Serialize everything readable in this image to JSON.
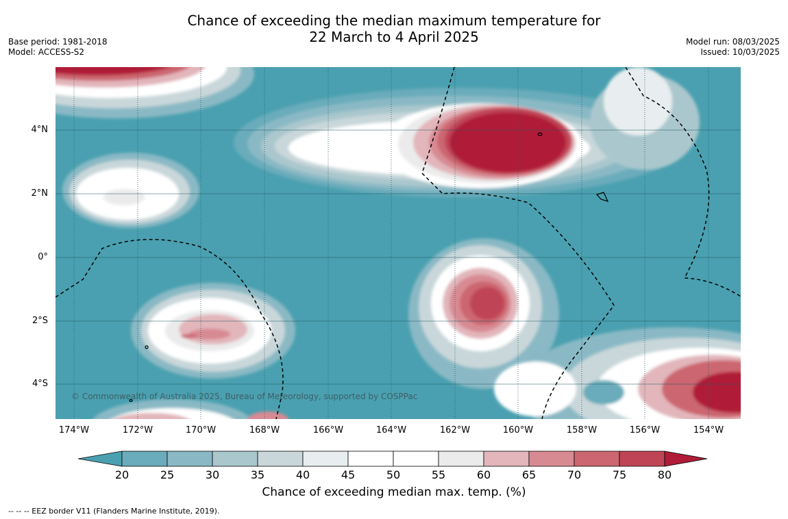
{
  "title_line1": "Chance of exceeding the median maximum temperature for",
  "title_line2": "22 March to 4 April 2025",
  "meta_left": [
    "Base period: 1981-2018",
    "Model: ACCESS-S2"
  ],
  "meta_right": [
    "Model run: 08/03/2025",
    "Issued: 10/03/2025"
  ],
  "lat_labels": [
    "4°N",
    "2°N",
    "0°",
    "2°S",
    "4°S"
  ],
  "lon_labels": [
    "174°W",
    "172°W",
    "170°W",
    "168°W",
    "166°W",
    "164°W",
    "162°W",
    "160°W",
    "158°W",
    "156°W",
    "154°W"
  ],
  "colorbar": {
    "ticks": [
      "20",
      "25",
      "30",
      "35",
      "40",
      "45",
      "50",
      "55",
      "60",
      "65",
      "70",
      "75",
      "80"
    ],
    "colors": [
      "#4aa0b0",
      "#6aacbb",
      "#8ab9c5",
      "#aac7cd",
      "#c9d7da",
      "#e8eeef",
      "#ffffff",
      "#ffffff",
      "#ebebeb",
      "#e2b6bb",
      "#d88a93",
      "#cc6670",
      "#bf4556",
      "#b01c38"
    ],
    "label": "Chance of exceeding median max. temp. (%)"
  },
  "copyright": "© Commonwealth of Australia 2025, Bureau of Meteorology, supported by COSPPac",
  "footnote": "--  --  -- EEZ border V11 (Flanders Marine Institute, 2019)."
}
